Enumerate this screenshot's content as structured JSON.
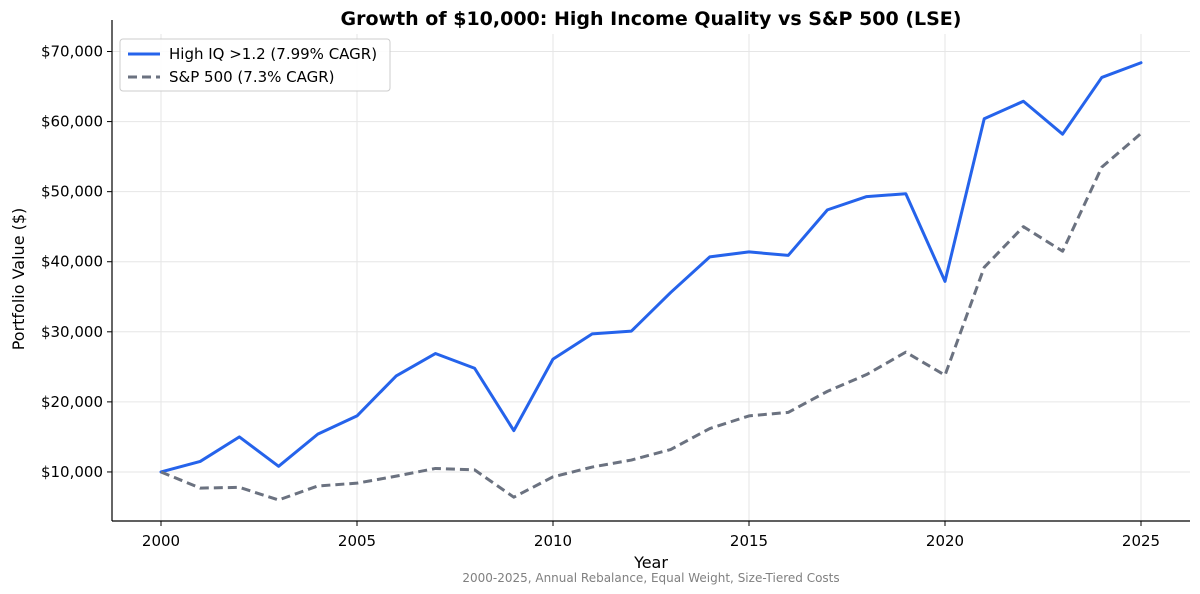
{
  "chart_data": {
    "type": "line",
    "title": "Growth of $10,000: High Income Quality vs S&P 500 (LSE)",
    "subtitle": "2000-2025, Annual Rebalance, Equal Weight, Size-Tiered Costs",
    "xlabel": "Year",
    "ylabel": "Portfolio Value ($)",
    "xlim": [
      1998.75,
      2026.25
    ],
    "ylim": [
      3000,
      72500
    ],
    "x_ticks": [
      2000,
      2005,
      2010,
      2015,
      2020,
      2025
    ],
    "y_ticks": [
      10000,
      20000,
      30000,
      40000,
      50000,
      60000,
      70000
    ],
    "y_tick_labels": [
      "$10,000",
      "$20,000",
      "$30,000",
      "$40,000",
      "$50,000",
      "$60,000",
      "$70,000"
    ],
    "grid": true,
    "legend_position": "top-left",
    "x": [
      2000,
      2001,
      2002,
      2003,
      2004,
      2005,
      2006,
      2007,
      2008,
      2009,
      2010,
      2011,
      2012,
      2013,
      2014,
      2015,
      2016,
      2017,
      2018,
      2019,
      2020,
      2021,
      2022,
      2023,
      2024,
      2025
    ],
    "series": [
      {
        "name": "High IQ >1.2 (7.99% CAGR)",
        "color": "#2563eb",
        "style": "solid",
        "values": [
          10000,
          11500,
          15000,
          10800,
          15400,
          18000,
          23700,
          26900,
          24800,
          15900,
          26100,
          29700,
          30100,
          35600,
          40700,
          41400,
          40900,
          47400,
          49300,
          49700,
          37200,
          60400,
          62900,
          58200,
          66300,
          68400
        ]
      },
      {
        "name": "S&P 500 (7.3% CAGR)",
        "color": "#6b7280",
        "style": "dashed",
        "values": [
          10000,
          7700,
          7800,
          6000,
          8000,
          8400,
          9400,
          10500,
          10300,
          6400,
          9300,
          10700,
          11700,
          13200,
          16200,
          18000,
          18500,
          21500,
          23900,
          27100,
          23800,
          39200,
          45000,
          41500,
          53500,
          58300
        ]
      }
    ]
  }
}
